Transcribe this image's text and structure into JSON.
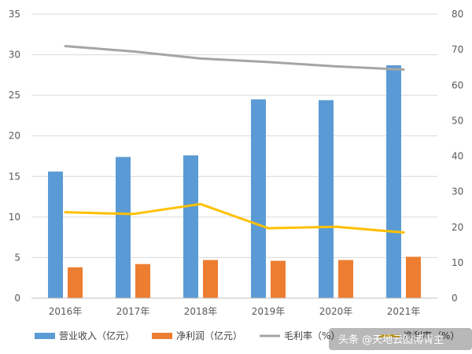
{
  "chart_data": {
    "type": "bar",
    "categories": [
      "2016年",
      "2017年",
      "2018年",
      "2019年",
      "2020年",
      "2021年"
    ],
    "series": [
      {
        "name": "营业收入（亿元）",
        "type": "bar",
        "axis": "left",
        "color": "#5B9BD5",
        "values": [
          15.6,
          17.4,
          17.6,
          24.5,
          24.4,
          28.7
        ]
      },
      {
        "name": "净利润（亿元）",
        "type": "bar",
        "axis": "left",
        "color": "#ED7D31",
        "values": [
          3.8,
          4.2,
          4.7,
          4.6,
          4.7,
          5.1
        ]
      },
      {
        "name": "毛利率（%）",
        "type": "line",
        "axis": "right",
        "color": "#A5A5A5",
        "values": [
          71,
          69.5,
          67.5,
          66.5,
          65.3,
          64.4
        ]
      },
      {
        "name": "净利率（%）",
        "type": "line",
        "axis": "right",
        "color": "#FFC000",
        "values": [
          24.2,
          23.7,
          26.5,
          19.7,
          20.1,
          18.5
        ]
      }
    ],
    "y_left": {
      "min": 0,
      "max": 35,
      "step": 5,
      "ticks": [
        "0",
        "5",
        "10",
        "15",
        "20",
        "25",
        "30",
        "35"
      ]
    },
    "y_right": {
      "min": 0,
      "max": 80,
      "step": 10,
      "ticks": [
        "0",
        "10",
        "20",
        "30",
        "40",
        "50",
        "60",
        "70",
        "80"
      ]
    },
    "grid": true,
    "legend_position": "bottom"
  },
  "watermark": {
    "text": "头条 @天地云图博青主"
  }
}
